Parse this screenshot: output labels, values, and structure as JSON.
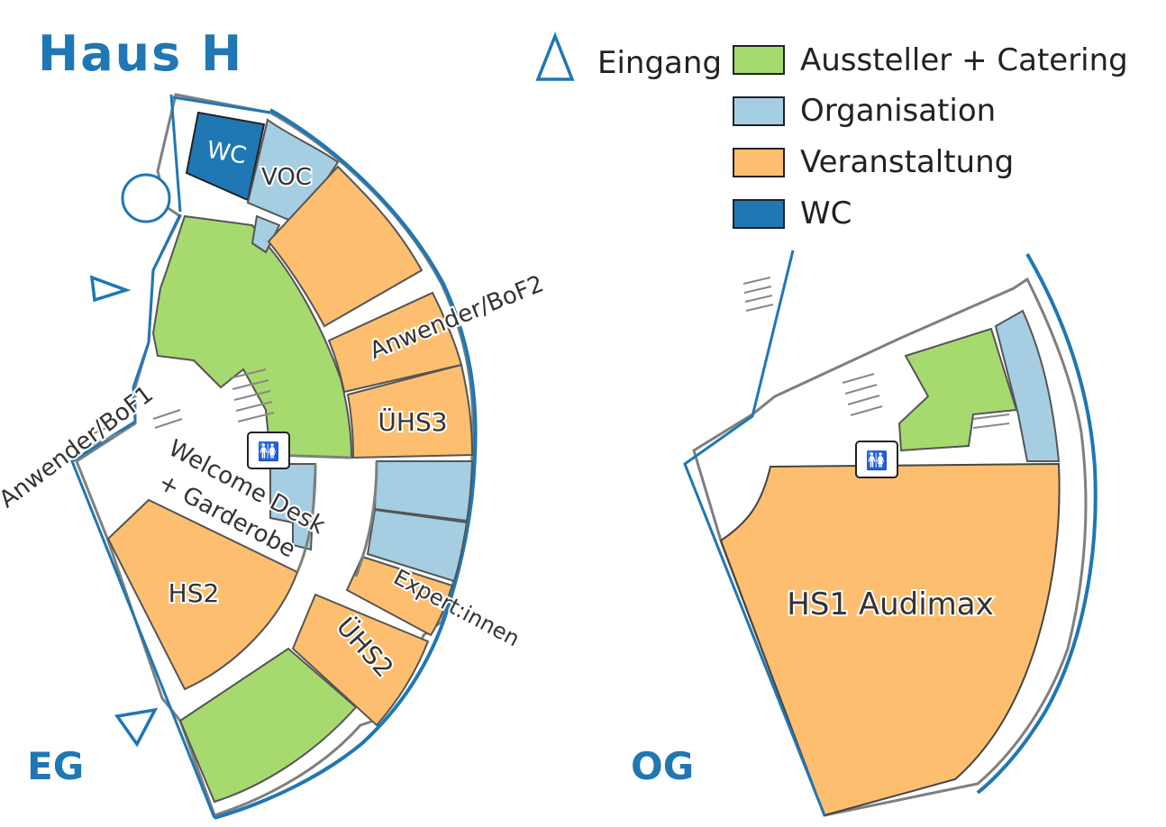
{
  "title": "Haus H",
  "colors": {
    "accent": "#1f77b4",
    "aussteller_catering": "#a6da6f",
    "organisation": "#a6cee3",
    "veranstaltung": "#fdbf6f",
    "wc": "#1f78b4",
    "wall": "#7f7f7f"
  },
  "legend": {
    "entrance": {
      "label": "Eingang",
      "icon": "triangle-entrance-icon"
    },
    "items": [
      {
        "label": "Aussteller + Catering",
        "color": "#a6da6f"
      },
      {
        "label": "Organisation",
        "color": "#a6cee3"
      },
      {
        "label": "Veranstaltung",
        "color": "#fdbf6f"
      },
      {
        "label": "WC",
        "color": "#1f78b4"
      }
    ]
  },
  "floors": {
    "eg": {
      "label": "EG",
      "rooms": {
        "wc": "WC",
        "voc": "VOC",
        "anwender_bof1": "Anwender/BoF1",
        "anwender_bof2": "Anwender/BoF2",
        "uehs3": "ÜHS3",
        "welcome_line1": "Welcome Desk",
        "welcome_line2": "+ Garderobe",
        "hs2": "HS2",
        "expertinnen": "Expert:innen",
        "uehs2": "ÜHS2"
      },
      "icons": [
        "restroom-elevator-icon"
      ]
    },
    "og": {
      "label": "OG",
      "rooms": {
        "hs1": "HS1 Audimax"
      },
      "icons": [
        "restroom-elevator-icon"
      ]
    }
  }
}
